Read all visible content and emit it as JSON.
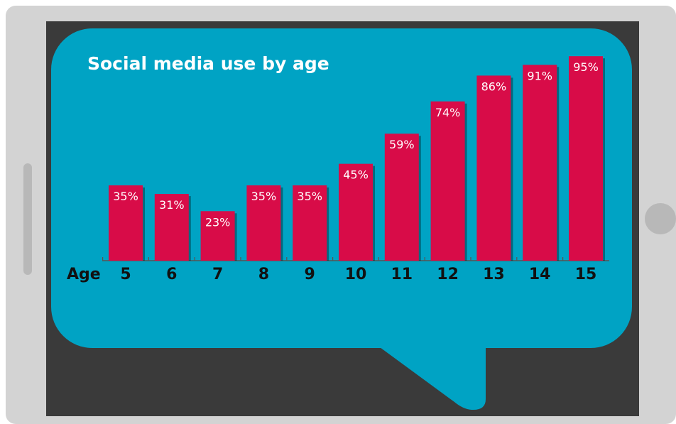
{
  "colors": {
    "device_frame": "#d3d3d3",
    "screen": "#3a3a3a",
    "bubble": "#00a3c4",
    "bar": "#d80c48",
    "text_light": "#ffffff",
    "text_dark": "#111111"
  },
  "chart_data": {
    "type": "bar",
    "title": "Social media use by age",
    "xlabel": "Age",
    "ylabel": "",
    "categories": [
      "5",
      "6",
      "7",
      "8",
      "9",
      "10",
      "11",
      "12",
      "13",
      "14",
      "15"
    ],
    "values": [
      35,
      31,
      23,
      35,
      35,
      45,
      59,
      74,
      86,
      91,
      95
    ],
    "value_labels": [
      "35%",
      "31%",
      "23%",
      "35%",
      "35%",
      "45%",
      "59%",
      "74%",
      "86%",
      "91%",
      "95%"
    ],
    "unit": "%",
    "ylim": [
      0,
      100
    ],
    "grid": false,
    "legend": "none"
  }
}
